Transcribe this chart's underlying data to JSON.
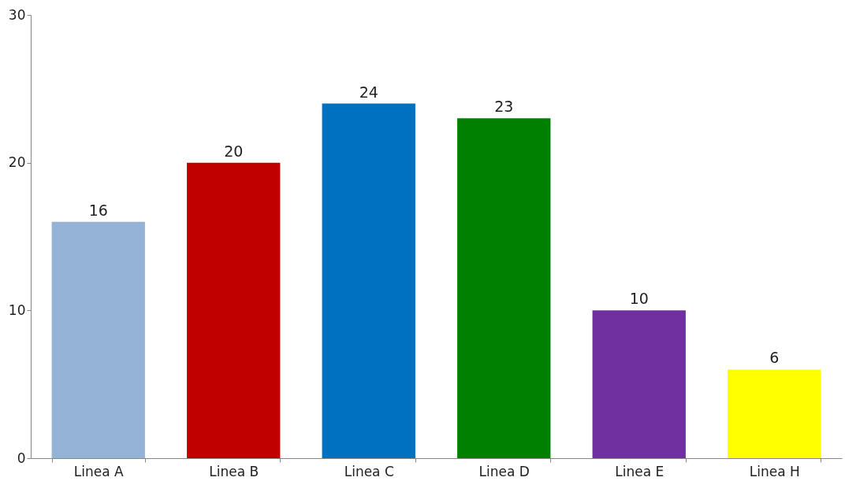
{
  "chart_data": {
    "type": "bar",
    "categories": [
      "Linea A",
      "Linea B",
      "Linea C",
      "Linea D",
      "Linea E",
      "Linea H"
    ],
    "values": [
      16,
      20,
      24,
      23,
      10,
      6
    ],
    "colors": [
      "#95b3d7",
      "#c00000",
      "#0070c0",
      "#008000",
      "#7030a0",
      "#ffff00"
    ],
    "ylim": [
      0,
      30
    ],
    "yticks": [
      0,
      10,
      20,
      30
    ],
    "grid": false,
    "data_labels": true,
    "legend": false
  }
}
